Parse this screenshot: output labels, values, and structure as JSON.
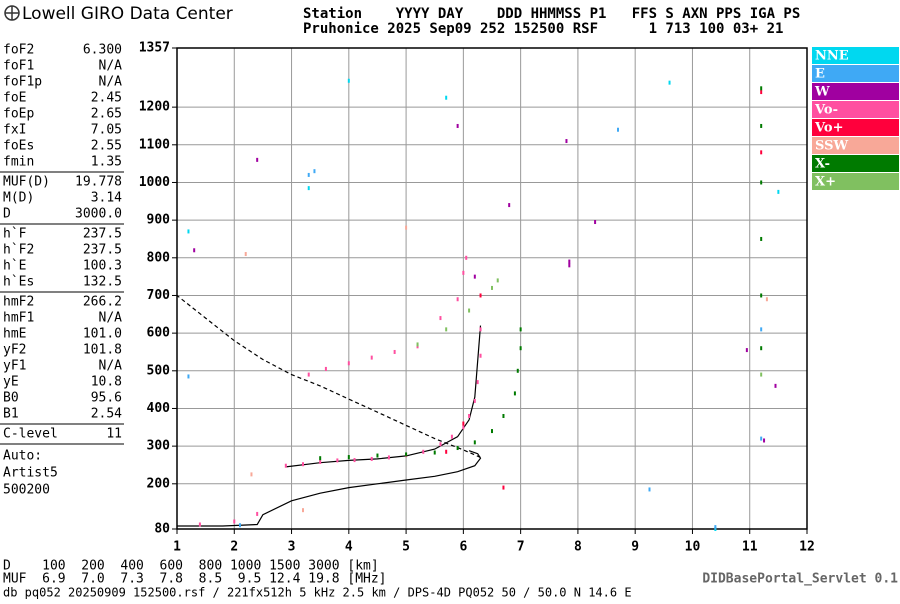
{
  "header": {
    "logo": "Lowell GIRO Data Center",
    "line1": "Station    YYYY DAY    DDD HHMMSS P1   FFS S AXN PPS IGA PS",
    "line2": "Pruhonice 2025 Sep09 252 152500 RSF      1 713 100 03+ 21"
  },
  "parameters": [
    [
      [
        "foF2",
        "6.300"
      ],
      [
        "foF1",
        "N/A"
      ],
      [
        "foF1p",
        "N/A"
      ],
      [
        "foE",
        "2.45"
      ],
      [
        "foEp",
        "2.65"
      ],
      [
        "fxI",
        "7.05"
      ],
      [
        "foEs",
        "2.55"
      ],
      [
        "fmin",
        "1.35"
      ]
    ],
    [
      [
        "MUF(D)",
        "19.778"
      ],
      [
        "M(D)",
        "3.14"
      ],
      [
        "D",
        "3000.0"
      ]
    ],
    [
      [
        "h`F",
        "237.5"
      ],
      [
        "h`F2",
        "237.5"
      ],
      [
        "h`E",
        "100.3"
      ],
      [
        "h`Es",
        "132.5"
      ]
    ],
    [
      [
        "hmF2",
        "266.2"
      ],
      [
        "hmF1",
        "N/A"
      ],
      [
        "hmE",
        "101.0"
      ],
      [
        "yF2",
        "101.8"
      ],
      [
        "yF1",
        "N/A"
      ],
      [
        "yE",
        "10.8"
      ],
      [
        "B0",
        "95.6"
      ],
      [
        "B1",
        "2.54"
      ]
    ],
    [
      [
        "C-level",
        "11"
      ]
    ]
  ],
  "auto": [
    "Auto:",
    "Artist5",
    "500200"
  ],
  "footer": {
    "d_row": "D    100  200  400  600  800 1000 1500 3000 [km]",
    "muf_row": "MUF  6.9  7.0  7.3  7.8  8.5  9.5 12.4 19.8 [MHz]",
    "servlet": "DIDBasePortal_Servlet 0.1",
    "file": "db pq052 20250909 152500.rsf / 221fx512h 5 kHz 2.5 km / DPS-4D PQ052 50 / 50.0 N 14.6 E"
  },
  "chart_data": {
    "type": "scatter",
    "xlim": [
      1,
      12
    ],
    "xticks": [
      1,
      2,
      3,
      4,
      5,
      6,
      7,
      8,
      9,
      10,
      11,
      12
    ],
    "ylim": [
      80,
      1357
    ],
    "yticks": [
      80,
      200,
      300,
      400,
      500,
      600,
      700,
      800,
      900,
      1000,
      1100,
      1200,
      1357
    ],
    "grid": true,
    "series": [
      {
        "name": "NNE",
        "color": "#00d8f0",
        "x": [
          1.2,
          3.3,
          5.7,
          9.6,
          10.4,
          11.5,
          4.0
        ],
        "values": [
          870,
          985,
          1225,
          1265,
          80,
          975,
          1270
        ]
      },
      {
        "name": "E",
        "color": "#3fa9f5",
        "x": [
          1.2,
          2.1,
          3.3,
          9.25,
          10.4,
          11.2,
          11.2,
          8.7,
          3.4
        ],
        "values": [
          485,
          90,
          1020,
          185,
          85,
          610,
          320,
          1140,
          1030
        ]
      },
      {
        "name": "W",
        "color": "#a000a0",
        "x": [
          1.3,
          2.4,
          5.9,
          7.8,
          8.3,
          7.85,
          7.85,
          10.95,
          11.25,
          11.45,
          6.8,
          6.2
        ],
        "values": [
          820,
          1060,
          1150,
          1110,
          895,
          790,
          780,
          555,
          315,
          460,
          940,
          750
        ]
      },
      {
        "name": "Vo-",
        "color": "#ff4fa0",
        "x": [
          1.4,
          2.0,
          2.4,
          2.9,
          3.2,
          3.5,
          3.8,
          4.1,
          4.4,
          4.7,
          5.0,
          5.3,
          5.6,
          5.8,
          6.0,
          6.1,
          6.2,
          6.25,
          6.3,
          6.3,
          3.3,
          3.6,
          4.0,
          4.4,
          4.8,
          5.2,
          5.6,
          5.9,
          6.0,
          6.05
        ],
        "values": [
          92,
          100,
          120,
          248,
          252,
          258,
          262,
          263,
          266,
          270,
          276,
          285,
          305,
          325,
          350,
          380,
          420,
          470,
          540,
          610,
          490,
          505,
          520,
          535,
          550,
          565,
          640,
          690,
          760,
          800
        ]
      },
      {
        "name": "Vo+",
        "color": "#ff003c",
        "x": [
          6.3,
          6.7,
          11.2,
          11.2,
          6.0,
          5.7
        ],
        "values": [
          700,
          190,
          1240,
          1080,
          360,
          285
        ]
      },
      {
        "name": "SSW",
        "color": "#f8a898",
        "x": [
          2.2,
          11.3,
          2.3,
          3.2,
          5.0
        ],
        "values": [
          810,
          690,
          225,
          130,
          880
        ]
      },
      {
        "name": "X-",
        "color": "#007a00",
        "x": [
          3.5,
          4.0,
          4.5,
          5.0,
          5.5,
          5.9,
          6.2,
          6.5,
          6.7,
          6.9,
          6.95,
          7.0,
          7.0,
          11.2,
          11.2,
          11.2,
          11.2,
          11.2,
          11.2
        ],
        "values": [
          268,
          271,
          275,
          278,
          283,
          295,
          310,
          340,
          380,
          440,
          500,
          560,
          610,
          560,
          700,
          850,
          1000,
          1150,
          1250
        ]
      },
      {
        "name": "X+",
        "color": "#80c060",
        "x": [
          5.2,
          5.7,
          6.1,
          6.5,
          6.6,
          11.2
        ],
        "values": [
          570,
          610,
          660,
          720,
          740,
          490
        ]
      }
    ],
    "lines": [
      {
        "style": "solid",
        "x": [
          1.0,
          1.8,
          2.4,
          2.5,
          3.0,
          3.5,
          4.0,
          4.5,
          5.0,
          5.5,
          5.9,
          6.2,
          6.3,
          6.25,
          6.1
        ],
        "values": [
          88,
          88,
          92,
          118,
          155,
          175,
          190,
          200,
          210,
          220,
          232,
          248,
          268,
          280,
          288
        ]
      },
      {
        "style": "dashed",
        "x": [
          6.3,
          6.0,
          5.5,
          5.0,
          4.5,
          4.0,
          3.5,
          3.0,
          2.5,
          2.0,
          1.5,
          1.0
        ],
        "values": [
          270,
          290,
          320,
          355,
          390,
          425,
          460,
          490,
          530,
          580,
          640,
          700
        ]
      },
      {
        "style": "solid",
        "x": [
          2.9,
          3.5,
          4.0,
          4.5,
          5.0,
          5.5,
          5.9,
          6.1,
          6.2,
          6.3
        ],
        "values": [
          245,
          256,
          262,
          266,
          274,
          292,
          325,
          370,
          430,
          620
        ]
      }
    ]
  }
}
